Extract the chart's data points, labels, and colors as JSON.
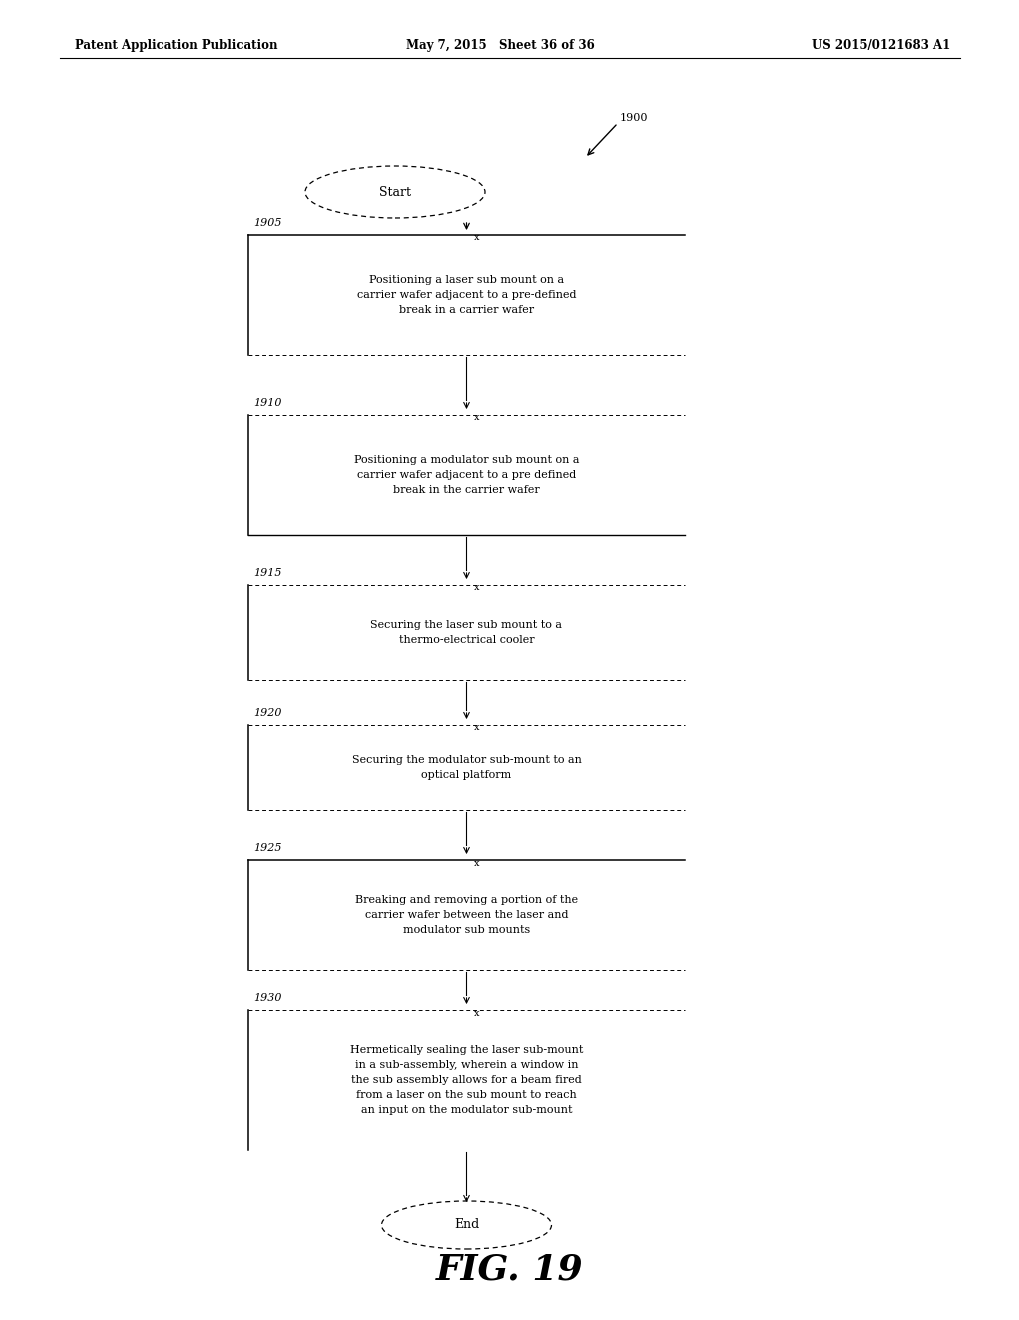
{
  "header_left": "Patent Application Publication",
  "header_mid": "May 7, 2015   Sheet 36 of 36",
  "header_right": "US 2015/0121683 A1",
  "figure_label": "FIG. 19",
  "ref_main": "1900",
  "start_label": "Start",
  "end_label": "End",
  "steps": [
    {
      "ref": "1905",
      "text": "Positioning a laser sub mount on a\ncarrier wafer adjacent to a pre-defined\nbreak in a carrier wafer",
      "top_line": "solid",
      "bottom_line": "dashed"
    },
    {
      "ref": "1910",
      "text": "Positioning a modulator sub mount on a\ncarrier wafer adjacent to a pre defined\nbreak in the carrier wafer",
      "top_line": "dashed",
      "bottom_line": "solid"
    },
    {
      "ref": "1915",
      "text": "Securing the laser sub mount to a\nthermo-electrical cooler",
      "top_line": "dashed",
      "bottom_line": "dashed"
    },
    {
      "ref": "1920",
      "text": "Securing the modulator sub-mount to an\noptical platform",
      "top_line": "dashed",
      "bottom_line": "dashed"
    },
    {
      "ref": "1925",
      "text": "Breaking and removing a portion of the\ncarrier wafer between the laser and\nmodulator sub mounts",
      "top_line": "solid",
      "bottom_line": "dashed"
    },
    {
      "ref": "1930",
      "text": "Hermetically sealing the laser sub-mount\nin a sub-assembly, wherein a window in\nthe sub assembly allows for a beam fired\nfrom a laser on the sub mount to reach\nan input on the modulator sub-mount",
      "top_line": "dashed",
      "bottom_line": "none"
    }
  ],
  "bg_color": "#ffffff",
  "text_color": "#000000"
}
